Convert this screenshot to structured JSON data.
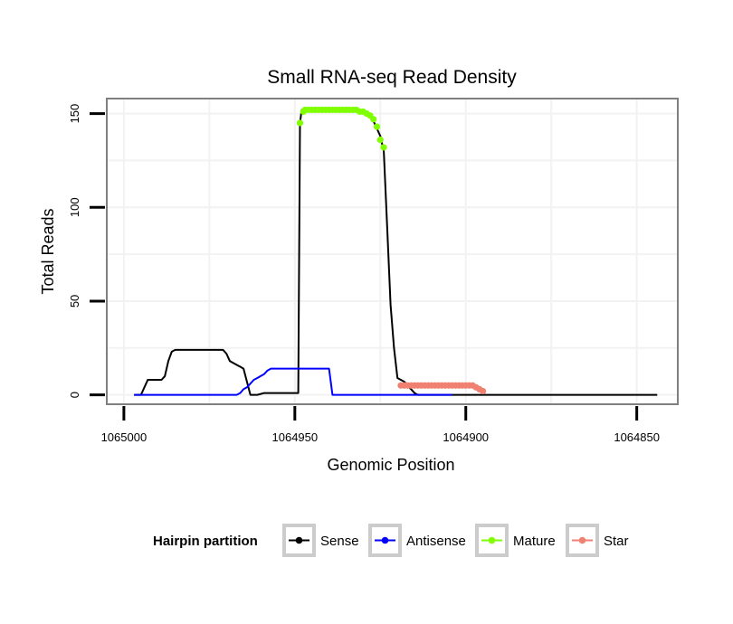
{
  "chart_data": {
    "type": "line",
    "title": "Small RNA-seq Read Density",
    "xlabel": "Genomic Position",
    "ylabel": "Total Reads",
    "xlim": [
      1065005,
      1064838
    ],
    "ylim": [
      -5,
      158
    ],
    "x_reversed": true,
    "x_ticks": [
      1065000,
      1064950,
      1064900,
      1064850
    ],
    "x_tick_labels": [
      "1065000",
      "1064950",
      "1064900",
      "1064850"
    ],
    "y_ticks": [
      0,
      50,
      100,
      150
    ],
    "y_tick_labels": [
      "0",
      "50",
      "100",
      "150"
    ],
    "grid": true,
    "legend": {
      "title": "Hairpin partition",
      "position": "bottom",
      "entries": [
        "Sense",
        "Antisense",
        "Mature",
        "Star"
      ]
    },
    "colors": {
      "Sense": "#000000",
      "Antisense": "#0000ff",
      "Mature": "#7fff00",
      "Star": "#f08070",
      "panel_border": "#7f7f7f",
      "grid": "#f2f2f2"
    },
    "series": [
      {
        "name": "Sense",
        "style": "line",
        "x": [
          1064997,
          1064995,
          1064993,
          1064991,
          1064989,
          1064988,
          1064987,
          1064986,
          1064985,
          1064980,
          1064975,
          1064972,
          1064971,
          1064970,
          1064969,
          1064968,
          1064967,
          1064966,
          1064965,
          1064964,
          1064963,
          1064962,
          1064961,
          1064959,
          1064949,
          1064948.5,
          1064948,
          1064947,
          1064946,
          1064943,
          1064940,
          1064935,
          1064930,
          1064928,
          1064927,
          1064926,
          1064925,
          1064924,
          1064923,
          1064922,
          1064921,
          1064920,
          1064919,
          1064918,
          1064917,
          1064916,
          1064915,
          1064914,
          1064844
        ],
        "y": [
          0,
          0,
          8,
          8,
          8,
          10,
          18,
          23,
          24,
          24,
          24,
          24,
          24,
          22,
          18,
          17,
          16,
          15,
          14,
          7,
          0,
          0,
          0,
          1,
          1,
          145,
          152,
          152,
          152,
          152,
          152,
          152,
          151,
          149,
          146,
          142,
          138,
          130,
          90,
          48,
          25,
          9,
          8,
          7,
          5,
          3,
          1,
          0,
          0
        ]
      },
      {
        "name": "Antisense",
        "style": "line",
        "x": [
          1064997,
          1064967,
          1064966,
          1064965,
          1064964,
          1064962,
          1064961,
          1064960,
          1064959,
          1064958,
          1064957,
          1064951,
          1064950,
          1064948,
          1064942,
          1064940,
          1064939,
          1064938,
          1064905,
          1064904
        ],
        "y": [
          0,
          0,
          1,
          3,
          4,
          8,
          9,
          10,
          11,
          13,
          14,
          14,
          14,
          14,
          14,
          14,
          0,
          0,
          0,
          0
        ]
      },
      {
        "name": "Mature",
        "style": "points",
        "x": [
          1064948.5,
          1064947.5,
          1064947,
          1064946,
          1064945,
          1064944,
          1064943,
          1064942,
          1064941,
          1064940,
          1064939,
          1064938,
          1064937,
          1064936,
          1064935,
          1064934,
          1064933,
          1064932,
          1064931,
          1064930,
          1064929,
          1064928,
          1064927,
          1064926,
          1064925,
          1064924
        ],
        "y": [
          145,
          151,
          152,
          152,
          152,
          152,
          152,
          152,
          152,
          152,
          152,
          152,
          152,
          152,
          152,
          152,
          152,
          152,
          151,
          151,
          150,
          149,
          147,
          143,
          136,
          132
        ]
      },
      {
        "name": "Star",
        "style": "points",
        "x": [
          1064919,
          1064918,
          1064917,
          1064916,
          1064915,
          1064914,
          1064913,
          1064912,
          1064911,
          1064910,
          1064909,
          1064908,
          1064907,
          1064906,
          1064905,
          1064904,
          1064903,
          1064902,
          1064901,
          1064900,
          1064899,
          1064898,
          1064897,
          1064896,
          1064895
        ],
        "y": [
          5,
          5,
          5,
          5,
          5,
          5,
          5,
          5,
          5,
          5,
          5,
          5,
          5,
          5,
          5,
          5,
          5,
          5,
          5,
          5,
          5,
          5,
          4,
          3,
          2
        ]
      }
    ]
  }
}
